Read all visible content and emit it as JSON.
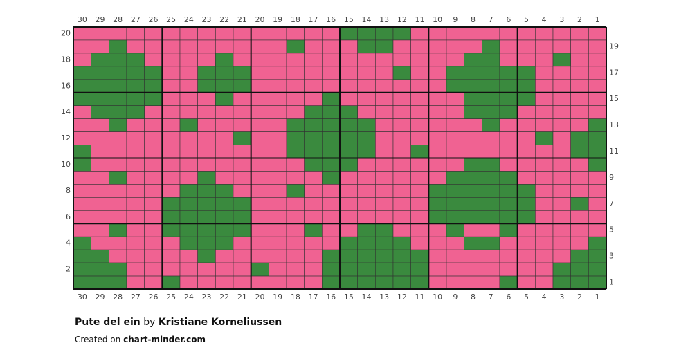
{
  "title": "Pute del ein",
  "by": "by",
  "author": "Kristiane Korneliussen",
  "created_on": "Created on",
  "site": "chart-minder.com",
  "columns": [
    30,
    29,
    28,
    27,
    26,
    25,
    24,
    23,
    22,
    21,
    20,
    19,
    18,
    17,
    16,
    15,
    14,
    13,
    12,
    11,
    10,
    9,
    8,
    7,
    6,
    5,
    4,
    3,
    2,
    1
  ],
  "rows": [
    20,
    19,
    18,
    17,
    16,
    15,
    14,
    13,
    12,
    11,
    10,
    9,
    8,
    7,
    6,
    5,
    4,
    3,
    2,
    1
  ]
}
